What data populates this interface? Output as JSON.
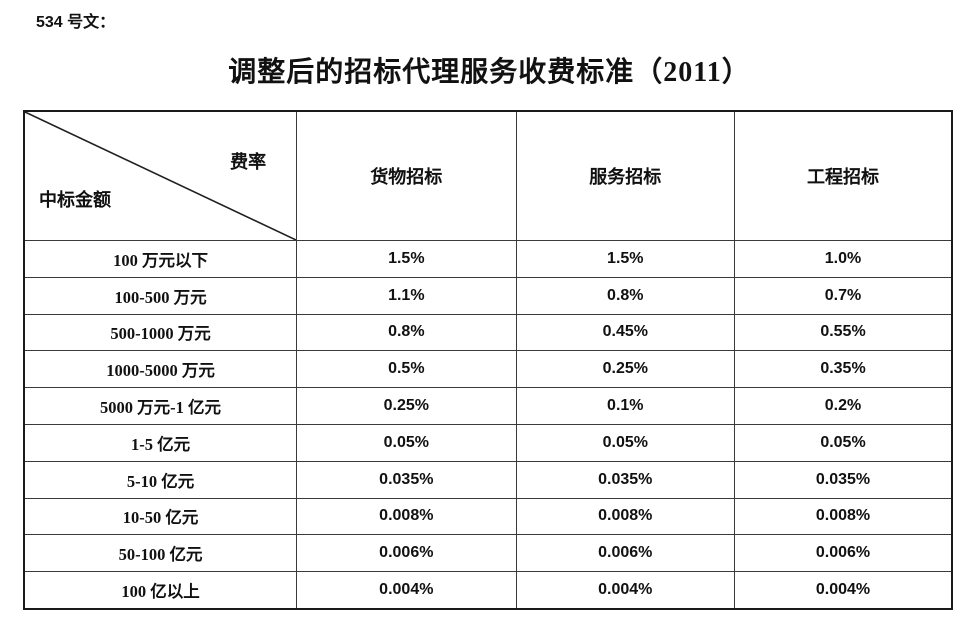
{
  "page": {
    "doc_label": "534 号文：",
    "title": "调整后的招标代理服务收费标准（2011）"
  },
  "table": {
    "corner": {
      "top_right": "费率",
      "bottom_left": "中标金额"
    },
    "columns": [
      "货物招标",
      "服务招标",
      "工程招标"
    ],
    "rows": [
      {
        "label": "100 万元以下",
        "values": [
          "1.5%",
          "1.5%",
          "1.0%"
        ]
      },
      {
        "label": "100-500 万元",
        "values": [
          "1.1%",
          "0.8%",
          "0.7%"
        ]
      },
      {
        "label": "500-1000 万元",
        "values": [
          "0.8%",
          "0.45%",
          "0.55%"
        ]
      },
      {
        "label": "1000-5000 万元",
        "values": [
          "0.5%",
          "0.25%",
          "0.35%"
        ]
      },
      {
        "label": "5000 万元-1 亿元",
        "values": [
          "0.25%",
          "0.1%",
          "0.2%"
        ]
      },
      {
        "label": "1-5 亿元",
        "values": [
          "0.05%",
          "0.05%",
          "0.05%"
        ]
      },
      {
        "label": "5-10 亿元",
        "values": [
          "0.035%",
          "0.035%",
          "0.035%"
        ]
      },
      {
        "label": "10-50 亿元",
        "values": [
          "0.008%",
          "0.008%",
          "0.008%"
        ]
      },
      {
        "label": "50-100 亿元",
        "values": [
          "0.006%",
          "0.006%",
          "0.006%"
        ]
      },
      {
        "label": "100 亿以上",
        "values": [
          "0.004%",
          "0.004%",
          "0.004%"
        ]
      }
    ],
    "border_color": "#1a1a1a"
  }
}
